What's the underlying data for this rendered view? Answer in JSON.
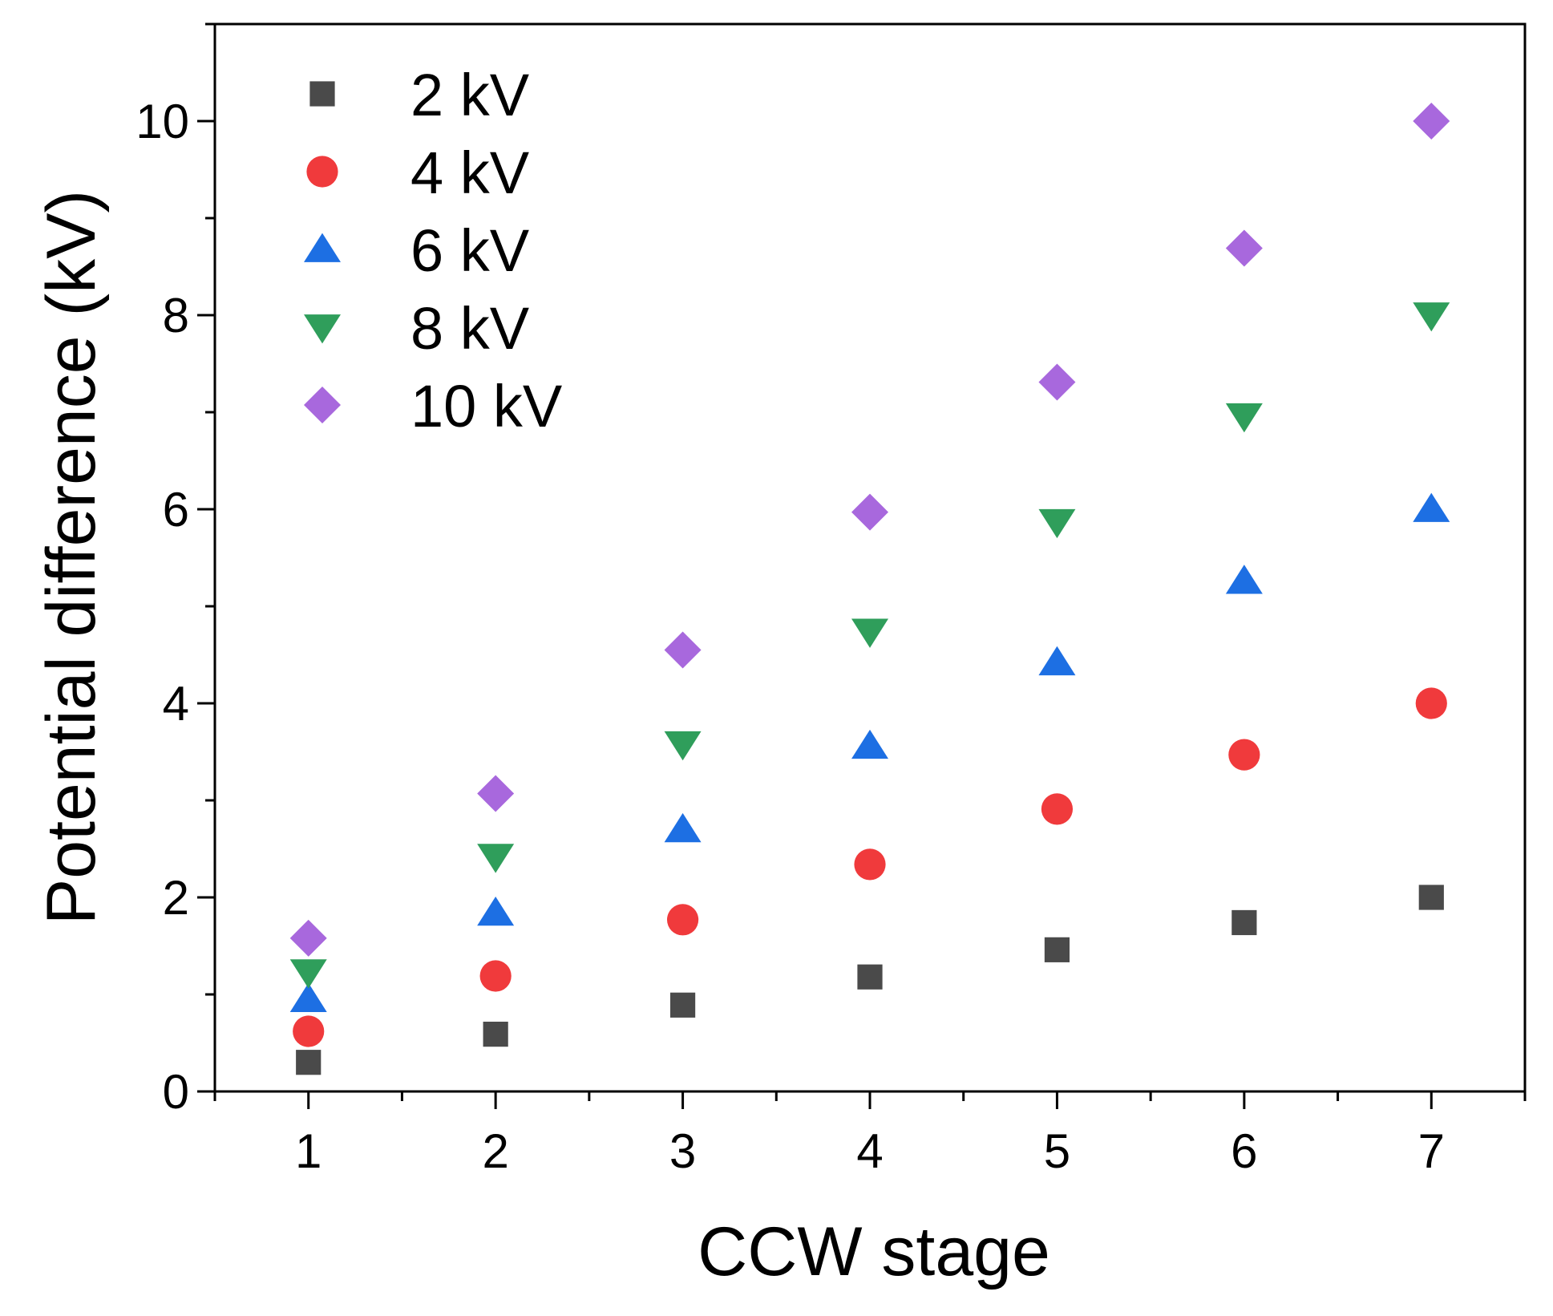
{
  "chart_data": {
    "type": "scatter",
    "title": "",
    "xlabel": "CCW stage",
    "ylabel": "Potential difference (kV)",
    "xlim": [
      0.5,
      7.5
    ],
    "ylim": [
      0,
      11
    ],
    "x_ticks": [
      1,
      2,
      3,
      4,
      5,
      6,
      7
    ],
    "y_ticks": [
      0,
      2,
      4,
      6,
      8,
      10
    ],
    "grid": false,
    "legend_position": "top-left",
    "x": [
      1,
      2,
      3,
      4,
      5,
      6,
      7
    ],
    "series": [
      {
        "name": "2 kV",
        "marker": "square",
        "color": "#4a4a4a",
        "values": [
          0.3,
          0.59,
          0.89,
          1.18,
          1.46,
          1.74,
          2.0
        ]
      },
      {
        "name": "4 kV",
        "marker": "circle",
        "color": "#f03a3c",
        "values": [
          0.62,
          1.19,
          1.77,
          2.34,
          2.91,
          3.47,
          4.0
        ]
      },
      {
        "name": "6 kV",
        "marker": "triangle-up",
        "color": "#1d6fe3",
        "values": [
          0.95,
          1.84,
          2.7,
          3.56,
          4.42,
          5.26,
          6.0
        ]
      },
      {
        "name": "8 kV",
        "marker": "triangle-down",
        "color": "#2f9e5b",
        "values": [
          1.23,
          2.42,
          3.58,
          4.74,
          5.87,
          6.96,
          8.0
        ]
      },
      {
        "name": "10 kV",
        "marker": "diamond",
        "color": "#a868dd",
        "values": [
          1.58,
          3.07,
          4.55,
          5.97,
          7.31,
          8.69,
          10.0
        ]
      }
    ]
  }
}
